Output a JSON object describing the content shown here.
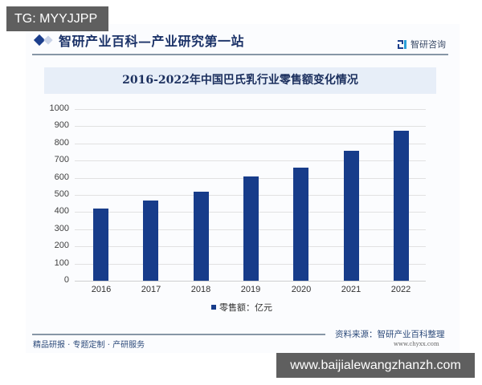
{
  "overlay": {
    "top_left_badge": "TG: MYYJJPP",
    "bottom_right_badge": "www.baijialewangzhanzh.com"
  },
  "header": {
    "title": "智研产业百科—产业研究第一站",
    "logo_text": "智研咨询",
    "accent_color": "#1b3e8c"
  },
  "chart_data": {
    "type": "bar",
    "title": "2016-2022年中国巴氏乳行业零售额变化情况",
    "categories": [
      "2016",
      "2017",
      "2018",
      "2019",
      "2020",
      "2021",
      "2022"
    ],
    "series": [
      {
        "name": "零售额：亿元",
        "values": [
          422,
          467,
          521,
          607,
          657,
          757,
          873
        ],
        "color": "#173c8a"
      }
    ],
    "xlabel": "",
    "ylabel": "",
    "ylim": [
      0,
      1000
    ],
    "yticks": [
      0,
      100,
      200,
      300,
      400,
      500,
      600,
      700,
      800,
      900,
      1000
    ],
    "grid": true,
    "legend_position": "bottom"
  },
  "footer": {
    "services": "精品研报 · 专题定制 · 产研服务",
    "source": "资料来源：智研产业百科整理",
    "url": "www.chyxx.com"
  }
}
